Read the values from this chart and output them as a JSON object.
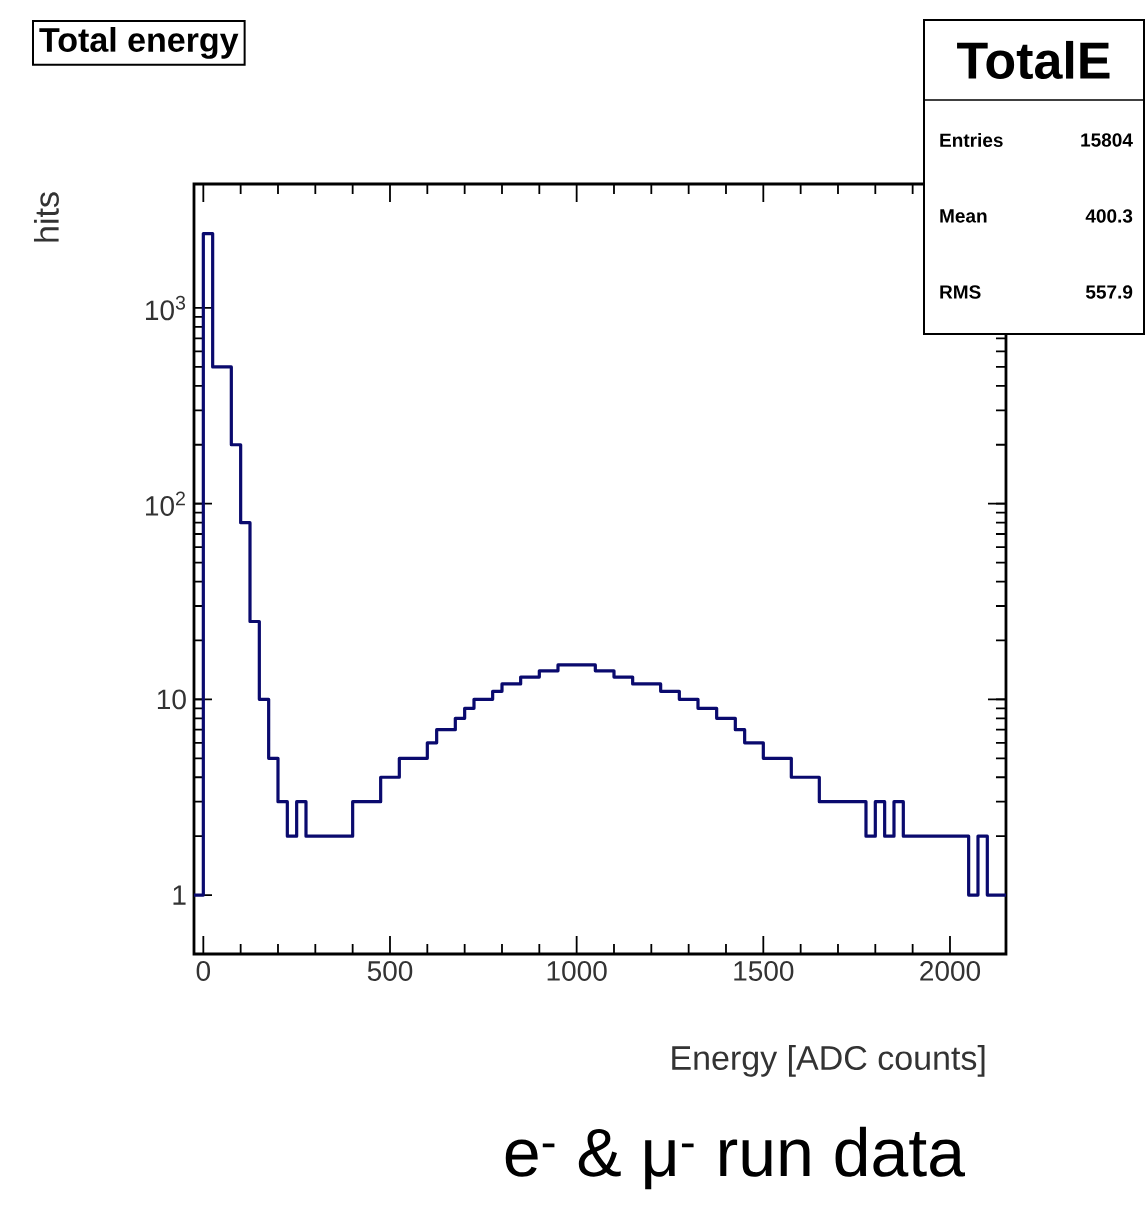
{
  "chart_data": {
    "type": "histogram",
    "title": "Total energy",
    "xlabel": "Energy [ADC counts]",
    "ylabel": "hits",
    "annotations": [
      "TotalE",
      "Entries",
      "15804",
      "Mean",
      "400.3",
      "RMS",
      "557.9",
      "e$^{-}$ & μ$^{-}$ run data"
    ],
    "bins": [
      -25,
      0,
      25,
      50,
      75,
      100,
      125,
      150,
      175,
      200,
      225,
      250,
      275,
      300,
      325,
      350,
      375,
      400,
      425,
      450,
      475,
      500,
      525,
      550,
      575,
      600,
      625,
      650,
      675,
      700,
      725,
      750,
      775,
      800,
      825,
      850,
      875,
      900,
      925,
      950,
      975,
      1000,
      1025,
      1050,
      1075,
      1100,
      1125,
      1150,
      1175,
      1200,
      1225,
      1250,
      1275,
      1300,
      1325,
      1350,
      1375,
      1400,
      1425,
      1450,
      1475,
      1500,
      1525,
      1550,
      1575,
      1600,
      1625,
      1650,
      1675,
      1700,
      1725,
      1750,
      1775,
      1800,
      1825,
      1850,
      1875,
      1900,
      1925,
      1950,
      1975,
      2000,
      2025,
      2050,
      2075,
      2100,
      2125,
      2150
    ],
    "values": [
      1,
      2400,
      500,
      500,
      200,
      80,
      25,
      10,
      5,
      3,
      2,
      3,
      2,
      2,
      2,
      2,
      2,
      3,
      3,
      3,
      4,
      4,
      5,
      5,
      5,
      6,
      7,
      7,
      8,
      9,
      10,
      10,
      11,
      12,
      12,
      13,
      13,
      14,
      14,
      15,
      15,
      15,
      15,
      14,
      14,
      13,
      13,
      12,
      12,
      12,
      11,
      11,
      10,
      10,
      9,
      9,
      8,
      8,
      7,
      6,
      6,
      5,
      5,
      5,
      4,
      4,
      4,
      3,
      3,
      3,
      3,
      3,
      2,
      3,
      2,
      3,
      2,
      2,
      2,
      2,
      2,
      2,
      2,
      1,
      2,
      1,
      1
    ],
    "color": "#0a0a6e",
    "log": "y",
    "xlim": [
      -25,
      2150
    ],
    "ylim": [
      0.5,
      4300
    ],
    "xticks": [
      0,
      500,
      1000,
      1500,
      2000
    ],
    "yticks": [
      1,
      10,
      {
        "value": 100,
        "label": "10$^{2}$"
      },
      {
        "value": 1000,
        "label": "10$^{3}$"
      }
    ]
  }
}
